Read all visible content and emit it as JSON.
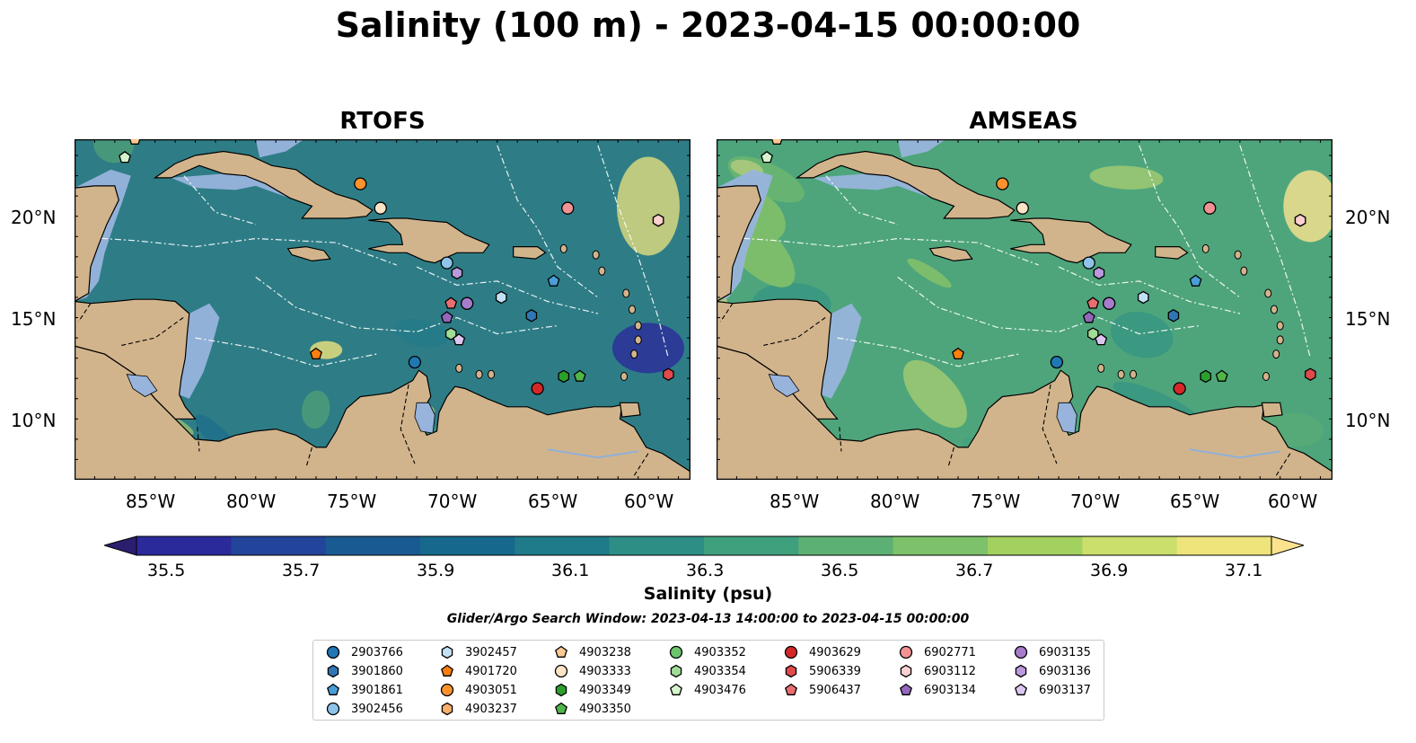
{
  "title": "Salinity (100 m) - 2023-04-15 00:00:00",
  "panels": [
    {
      "title": "RTOFS",
      "bg": "#2e7d86"
    },
    {
      "title": "AMSEAS",
      "bg": "#4ea57c"
    }
  ],
  "lat_ticks": [
    "20°N",
    "15°N",
    "10°N"
  ],
  "lon_ticks": [
    "85°W",
    "80°W",
    "75°W",
    "70°W",
    "65°W",
    "60°W"
  ],
  "colorbar": {
    "label": "Salinity (psu)",
    "tick_labels": [
      "35.5",
      "35.7",
      "35.9",
      "36.1",
      "36.3",
      "36.5",
      "36.7",
      "36.9",
      "37.1"
    ],
    "colors": [
      "#2c1e6e",
      "#2a2a9a",
      "#22449a",
      "#1a5a92",
      "#16698d",
      "#1f7b89",
      "#2d8e86",
      "#3fa07e",
      "#5db073",
      "#7dc26a",
      "#a3d160",
      "#cadf6c",
      "#ede47c",
      "#fbe38e"
    ]
  },
  "search_window": "Glider/Argo Search Window: 2023-04-13 14:00:00 to 2023-04-15 00:00:00",
  "legend": [
    {
      "id": "2903766",
      "marker": "circle",
      "color": "#1f77b4"
    },
    {
      "id": "3901860",
      "marker": "hexagon",
      "color": "#2f77b4"
    },
    {
      "id": "3901861",
      "marker": "pentagon",
      "color": "#4a9ed8"
    },
    {
      "id": "3902456",
      "marker": "circle",
      "color": "#8fc4ea"
    },
    {
      "id": "3902457",
      "marker": "hexagon",
      "color": "#c2e1f5"
    },
    {
      "id": "4901720",
      "marker": "pentagon",
      "color": "#ff7f0e"
    },
    {
      "id": "4903051",
      "marker": "circle",
      "color": "#fd922f"
    },
    {
      "id": "4903237",
      "marker": "hexagon",
      "color": "#fdae6b"
    },
    {
      "id": "4903238",
      "marker": "pentagon",
      "color": "#fdc891"
    },
    {
      "id": "4903333",
      "marker": "circle",
      "color": "#fde4c5"
    },
    {
      "id": "4903349",
      "marker": "hexagon",
      "color": "#2ca02c"
    },
    {
      "id": "4903350",
      "marker": "pentagon",
      "color": "#50b548"
    },
    {
      "id": "4903352",
      "marker": "circle",
      "color": "#6cc46c"
    },
    {
      "id": "4903354",
      "marker": "hexagon",
      "color": "#a1dc97"
    },
    {
      "id": "4903476",
      "marker": "pentagon",
      "color": "#d5f4ce"
    },
    {
      "id": "4903629",
      "marker": "circle",
      "color": "#d62728"
    },
    {
      "id": "5906339",
      "marker": "hexagon",
      "color": "#e04a4c"
    },
    {
      "id": "5906437",
      "marker": "pentagon",
      "color": "#ea6e70"
    },
    {
      "id": "6902771",
      "marker": "circle",
      "color": "#f29292"
    },
    {
      "id": "6903112",
      "marker": "hexagon",
      "color": "#fcd0d0"
    },
    {
      "id": "6903134",
      "marker": "pentagon",
      "color": "#9467bd"
    },
    {
      "id": "6903135",
      "marker": "circle",
      "color": "#a67ccc"
    },
    {
      "id": "6903136",
      "marker": "hexagon",
      "color": "#bb99dd"
    },
    {
      "id": "6903137",
      "marker": "pentagon",
      "color": "#dcc6f0"
    }
  ],
  "floats": [
    {
      "id": "2903766",
      "lon": -72.1,
      "lat": 12.8
    },
    {
      "id": "3901860",
      "lon": -66.3,
      "lat": 15.1
    },
    {
      "id": "3901861",
      "lon": -65.2,
      "lat": 16.8
    },
    {
      "id": "3902456",
      "lon": -70.5,
      "lat": 17.7
    },
    {
      "id": "3902457",
      "lon": -67.8,
      "lat": 16.0
    },
    {
      "id": "4901720",
      "lon": -77.0,
      "lat": 13.2
    },
    {
      "id": "4903051",
      "lon": -74.8,
      "lat": 21.6
    },
    {
      "id": "4903237",
      "lon": -60.0,
      "lat": 19.8
    },
    {
      "id": "4903238",
      "lon": -86.0,
      "lat": 23.8
    },
    {
      "id": "4903333",
      "lon": -73.8,
      "lat": 20.4
    },
    {
      "id": "4903349",
      "lon": -64.7,
      "lat": 12.1
    },
    {
      "id": "4903350",
      "lon": -63.9,
      "lat": 12.1
    },
    {
      "id": "4903352",
      "lon": -69.5,
      "lat": 15.7
    },
    {
      "id": "4903354",
      "lon": -70.3,
      "lat": 14.2
    },
    {
      "id": "4903476",
      "lon": -86.5,
      "lat": 22.9
    },
    {
      "id": "4903629",
      "lon": -66.0,
      "lat": 11.5
    },
    {
      "id": "5906339",
      "lon": -59.5,
      "lat": 12.2
    },
    {
      "id": "5906437",
      "lon": -70.3,
      "lat": 15.7
    },
    {
      "id": "6902771",
      "lon": -64.5,
      "lat": 20.4
    },
    {
      "id": "6903112",
      "lon": -60.0,
      "lat": 19.8
    },
    {
      "id": "6903134",
      "lon": -70.5,
      "lat": 15.0
    },
    {
      "id": "6903135",
      "lon": -69.5,
      "lat": 15.7
    },
    {
      "id": "6903136",
      "lon": -70.0,
      "lat": 17.2
    },
    {
      "id": "6903137",
      "lon": -69.9,
      "lat": 13.9
    }
  ]
}
